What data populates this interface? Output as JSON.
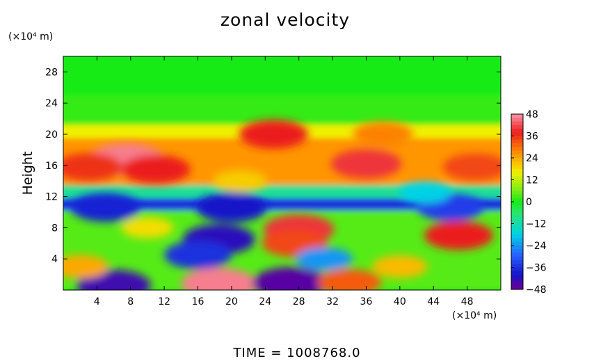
{
  "chart_data": {
    "type": "heatmap",
    "title": "zonal velocity",
    "ylabel": "Height",
    "xlabel": "",
    "y_unit": "(×10⁴ m)",
    "x_unit": "(×10⁴ m)",
    "xlim": [
      0,
      52
    ],
    "ylim": [
      0,
      30
    ],
    "x_ticks": [
      4,
      8,
      12,
      16,
      20,
      24,
      28,
      32,
      36,
      40,
      44,
      48
    ],
    "y_ticks": [
      4,
      8,
      12,
      16,
      20,
      24,
      28
    ],
    "colorbar": {
      "ticks": [
        48,
        36,
        24,
        12,
        0,
        -12,
        -24,
        -36,
        -48
      ],
      "range": [
        -48,
        48
      ]
    },
    "bands": [
      {
        "y": [
          25,
          30
        ],
        "value": 0
      },
      {
        "y": [
          21.2,
          25
        ],
        "value": 2
      },
      {
        "y": [
          19.5,
          21.2
        ],
        "value": 16
      },
      {
        "y": [
          13.5,
          19.5
        ],
        "value": 26
      },
      {
        "y": [
          11.8,
          13.5
        ],
        "value": -10
      },
      {
        "y": [
          10.2,
          11.8
        ],
        "value": -36
      },
      {
        "y": [
          0,
          10.2
        ],
        "value": 4
      }
    ],
    "features": [
      {
        "x": 7.5,
        "y": 16.8,
        "value": 46
      },
      {
        "x": 11,
        "y": 15.5,
        "value": 38
      },
      {
        "x": 3,
        "y": 15.8,
        "value": 36
      },
      {
        "x": 36,
        "y": 16.2,
        "value": 40
      },
      {
        "x": 49,
        "y": 15.8,
        "value": 34
      },
      {
        "x": 25,
        "y": 20,
        "value": 38
      },
      {
        "x": 38,
        "y": 20,
        "value": 28
      },
      {
        "x": 20,
        "y": 10.6,
        "value": -40
      },
      {
        "x": 5,
        "y": 10.6,
        "value": -38
      },
      {
        "x": 46,
        "y": 10.6,
        "value": -34
      },
      {
        "x": 18.5,
        "y": 6.5,
        "value": -42
      },
      {
        "x": 16,
        "y": 4.5,
        "value": -36
      },
      {
        "x": 28,
        "y": 7.8,
        "value": 40
      },
      {
        "x": 27.5,
        "y": 6,
        "value": 34
      },
      {
        "x": 47,
        "y": 7,
        "value": 38
      },
      {
        "x": 6,
        "y": 0.6,
        "value": -44
      },
      {
        "x": 18.5,
        "y": 0.8,
        "value": 46
      },
      {
        "x": 27,
        "y": 0.9,
        "value": -46
      },
      {
        "x": 34,
        "y": 1,
        "value": 32
      },
      {
        "x": 2,
        "y": 3,
        "value": 24
      },
      {
        "x": 31,
        "y": 4,
        "value": -24
      },
      {
        "x": 40,
        "y": 3,
        "value": 22
      },
      {
        "x": 10,
        "y": 8,
        "value": 18
      },
      {
        "x": 43,
        "y": 12.5,
        "value": -18
      },
      {
        "x": 21,
        "y": 14,
        "value": 20
      }
    ]
  },
  "footer": {
    "time_label": "TIME  =  1008768.0"
  }
}
